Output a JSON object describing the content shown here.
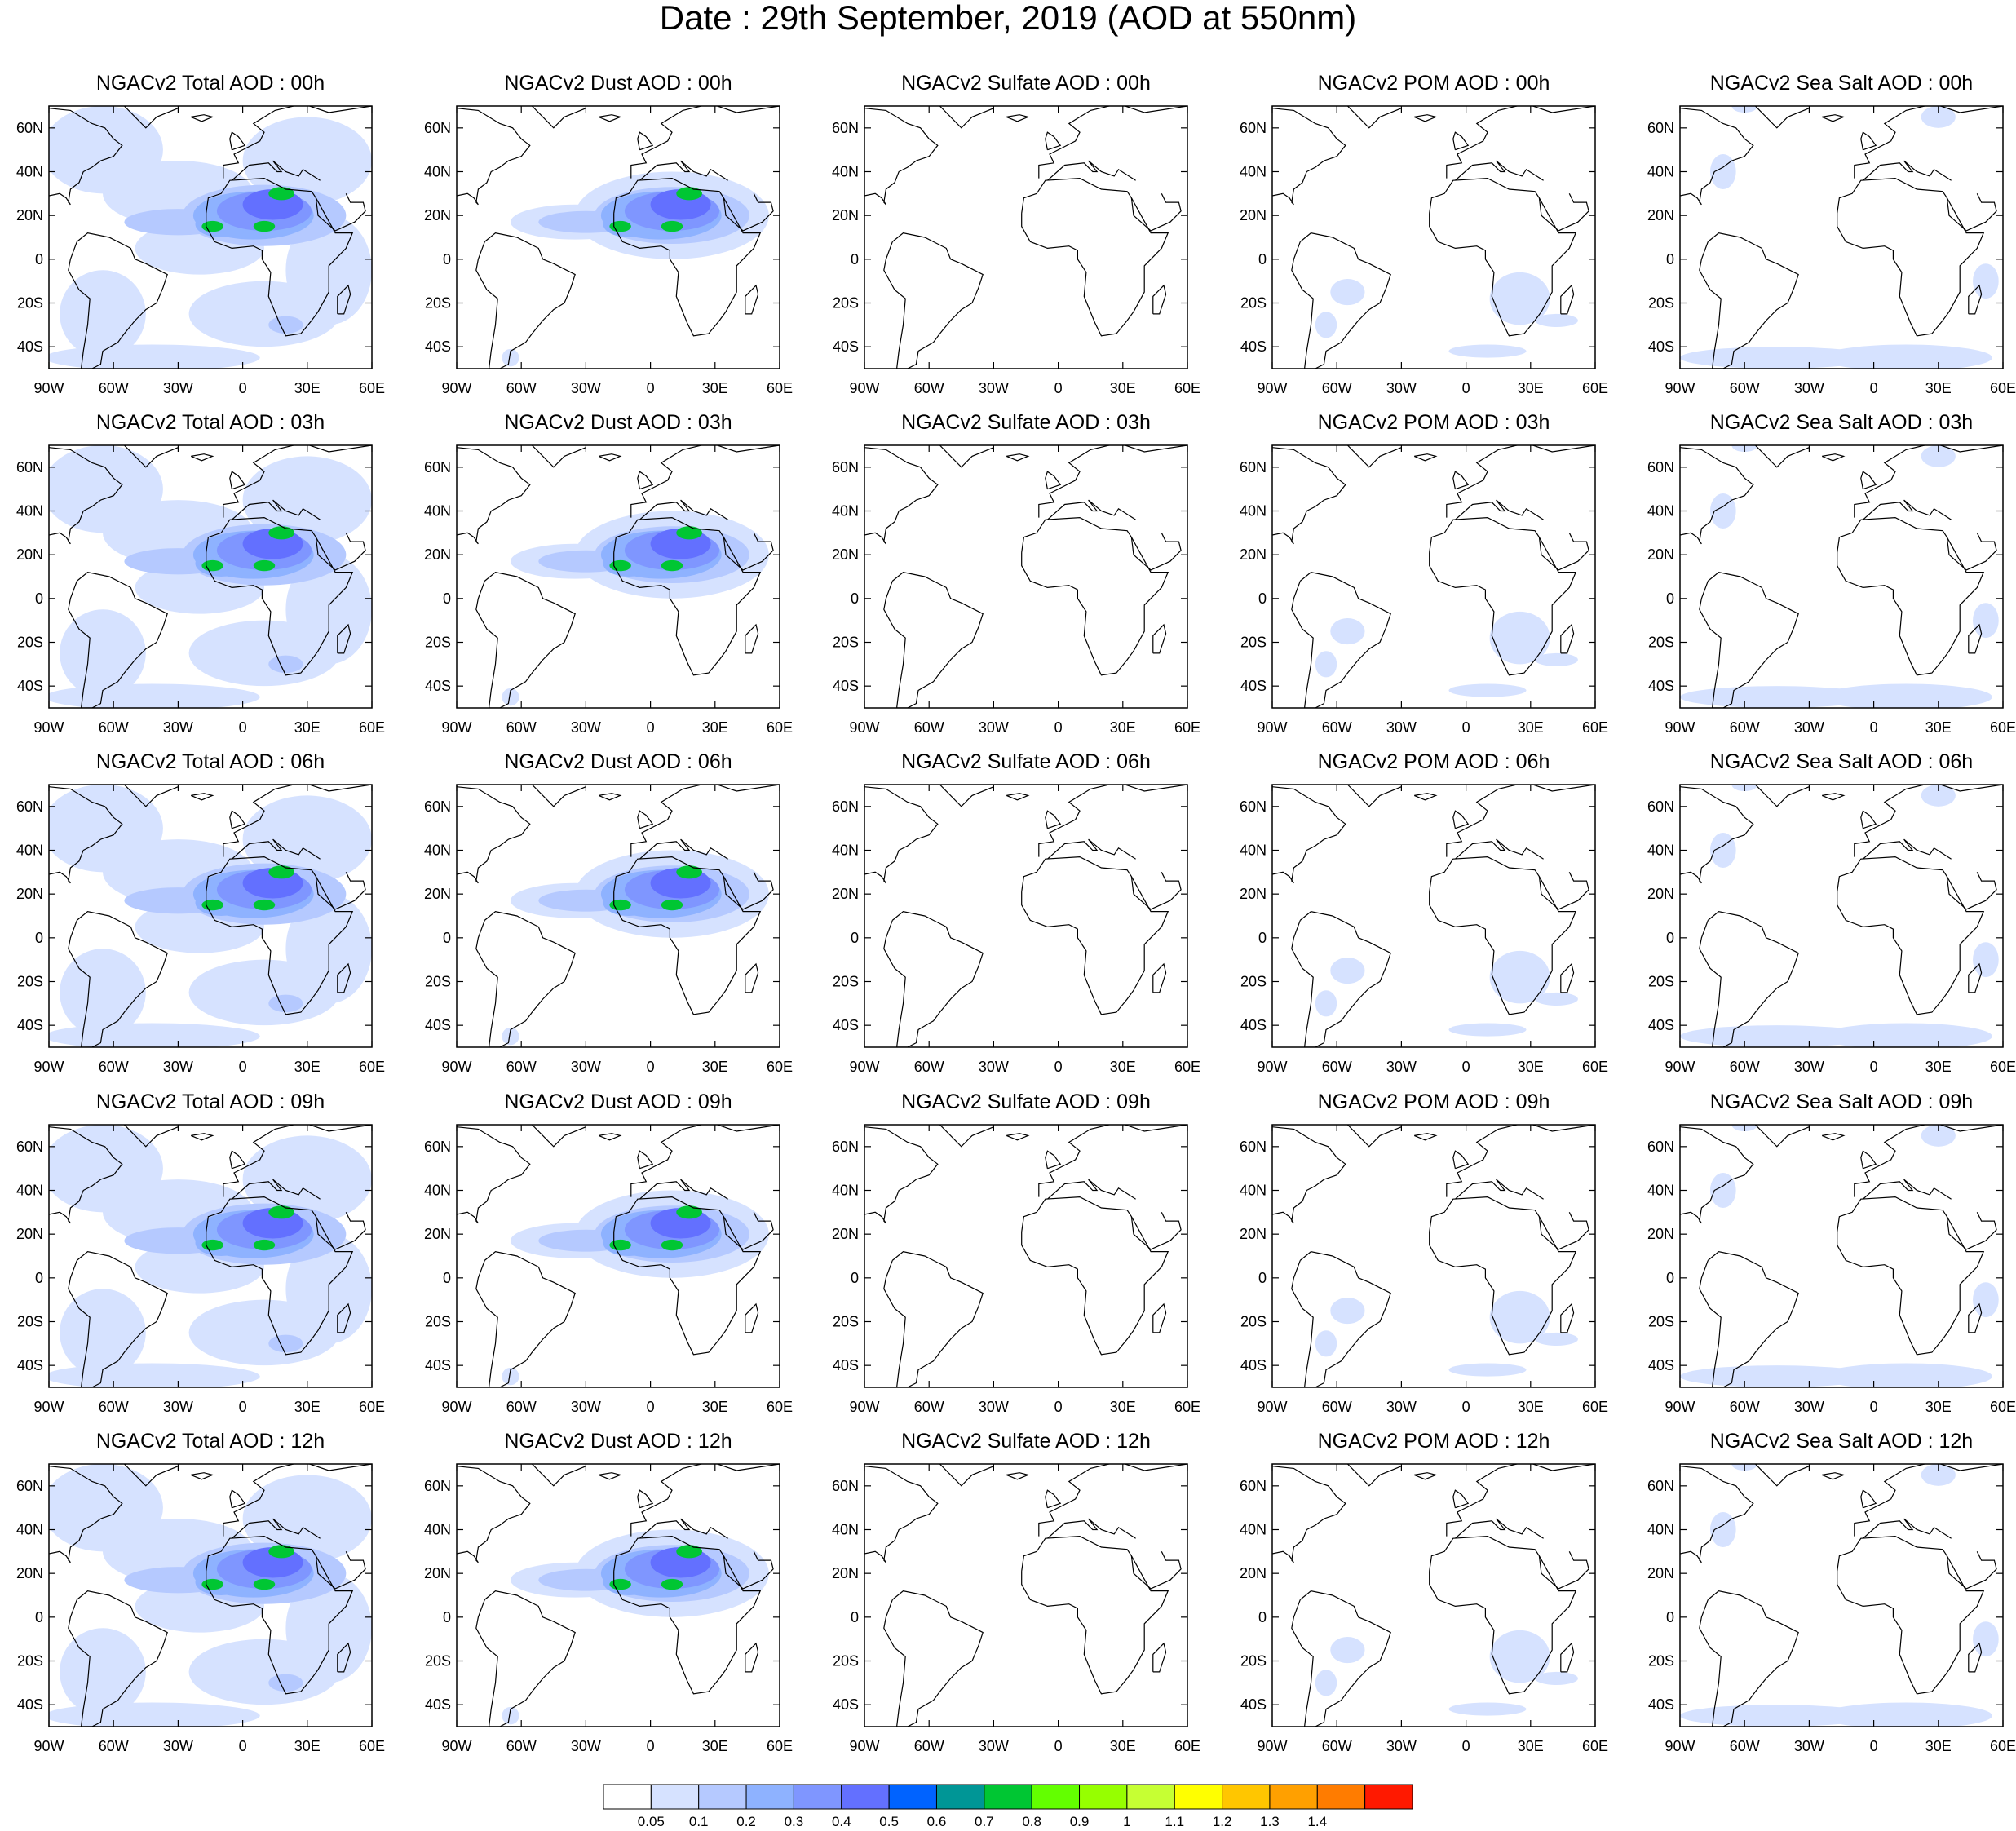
{
  "title": "Date : 29th September, 2019 (AOD at 550nm)",
  "panels": [
    [
      "NGACv2 Total AOD : 00h",
      "NGACv2 Dust AOD : 00h",
      "NGACv2 Sulfate AOD : 00h",
      "NGACv2 POM AOD : 00h",
      "NGACv2 Sea Salt AOD : 00h"
    ],
    [
      "NGACv2 Total AOD : 03h",
      "NGACv2 Dust AOD : 03h",
      "NGACv2 Sulfate AOD : 03h",
      "NGACv2 POM AOD : 03h",
      "NGACv2 Sea Salt AOD : 03h"
    ],
    [
      "NGACv2 Total AOD : 06h",
      "NGACv2 Dust AOD : 06h",
      "NGACv2 Sulfate AOD : 06h",
      "NGACv2 POM AOD : 06h",
      "NGACv2 Sea Salt AOD : 06h"
    ],
    [
      "NGACv2 Total AOD : 09h",
      "NGACv2 Dust AOD : 09h",
      "NGACv2 Sulfate AOD : 09h",
      "NGACv2 POM AOD : 09h",
      "NGACv2 Sea Salt  AOD : 09h"
    ],
    [
      "NGACv2 Total AOD  : 12h",
      "NGACv2 Dust AOD : 12h",
      "NGACv2 Sulfate AOD : 12h",
      "NGACv2 POM  AOD : 12h",
      "NGACv2 Sea Salt  AOD : 12h"
    ]
  ],
  "map": {
    "lon_labels": [
      "90W",
      "60W",
      "30W",
      "0",
      "30E",
      "60E"
    ],
    "lat_labels": [
      "60N",
      "40N",
      "20N",
      "0",
      "20S",
      "40S"
    ],
    "lon_range": [
      -90,
      60
    ],
    "lat_range": [
      -50,
      70
    ]
  },
  "colorbar": {
    "labels": [
      "0.05",
      "0.1",
      "0.2",
      "0.3",
      "0.4",
      "0.5",
      "0.6",
      "0.7",
      "0.8",
      "0.9",
      "1",
      "1.1",
      "1.2",
      "1.3",
      "1.4"
    ],
    "colors": [
      "#ffffff",
      "#d6e2ff",
      "#b5c9ff",
      "#8eb2ff",
      "#7f96ff",
      "#6370ff",
      "#0063ff",
      "#009696",
      "#00c633",
      "#63ff00",
      "#96ff00",
      "#c6ff33",
      "#ffff00",
      "#ffc600",
      "#ffa000",
      "#ff7c00",
      "#ff1900"
    ]
  }
}
